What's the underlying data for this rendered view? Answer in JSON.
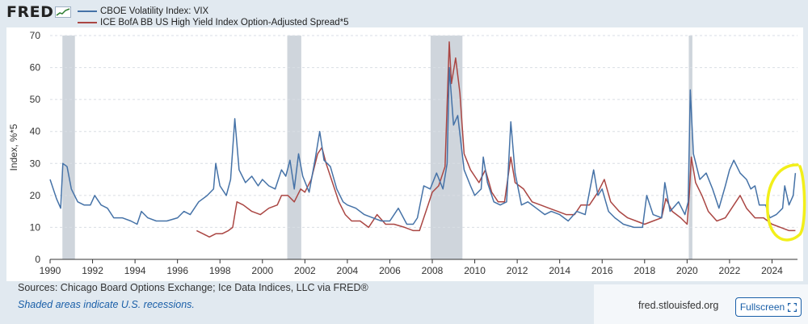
{
  "brand": {
    "logo_text": "FRED"
  },
  "footer": {
    "sources": "Sources: Chicago Board Options Exchange; Ice Data Indices, LLC via FRED®",
    "note": "Shaded areas indicate U.S. recessions.",
    "site": "fred.stlouisfed.org",
    "fullscreen_label": "Fullscreen"
  },
  "colors": {
    "vix": "#4572a7",
    "spread": "#aa4643",
    "recession": "#cfd5dc",
    "grid": "#d9dee4",
    "highlight": "#f2ef1a"
  },
  "chart_data": {
    "type": "line",
    "title": "",
    "xlabel": "",
    "ylabel": "Index, %*5",
    "xlim": [
      1990.0,
      2025.2
    ],
    "ylim": [
      0,
      70
    ],
    "y_ticks": [
      0,
      10,
      20,
      30,
      40,
      50,
      60,
      70
    ],
    "x_ticks": [
      "1990",
      "1992",
      "1994",
      "1996",
      "1998",
      "2000",
      "2002",
      "2004",
      "2006",
      "2008",
      "2010",
      "2012",
      "2014",
      "2016",
      "2018",
      "2020",
      "2022",
      "2024"
    ],
    "recessions": [
      [
        1990.58,
        1991.17
      ],
      [
        2001.17,
        2001.83
      ],
      [
        2007.92,
        2009.42
      ],
      [
        2020.08,
        2020.25
      ]
    ],
    "annotation": "yellow hand-drawn circle around the 2024 end of both series",
    "series": [
      {
        "name": "CBOE Volatility Index: VIX",
        "color": "#4572a7",
        "points": [
          [
            1990.0,
            25
          ],
          [
            1990.3,
            19
          ],
          [
            1990.5,
            16
          ],
          [
            1990.6,
            30
          ],
          [
            1990.8,
            29
          ],
          [
            1991.0,
            22
          ],
          [
            1991.3,
            18
          ],
          [
            1991.6,
            17
          ],
          [
            1991.9,
            17
          ],
          [
            1992.1,
            20
          ],
          [
            1992.4,
            17
          ],
          [
            1992.7,
            16
          ],
          [
            1993.0,
            13
          ],
          [
            1993.4,
            13
          ],
          [
            1993.8,
            12
          ],
          [
            1994.1,
            11
          ],
          [
            1994.3,
            15
          ],
          [
            1994.6,
            13
          ],
          [
            1995.0,
            12
          ],
          [
            1995.5,
            12
          ],
          [
            1996.0,
            13
          ],
          [
            1996.3,
            15
          ],
          [
            1996.6,
            14
          ],
          [
            1997.0,
            18
          ],
          [
            1997.4,
            20
          ],
          [
            1997.7,
            22
          ],
          [
            1997.8,
            30
          ],
          [
            1998.0,
            23
          ],
          [
            1998.3,
            20
          ],
          [
            1998.5,
            25
          ],
          [
            1998.7,
            44
          ],
          [
            1998.9,
            28
          ],
          [
            1999.2,
            24
          ],
          [
            1999.5,
            26
          ],
          [
            1999.8,
            23
          ],
          [
            2000.0,
            25
          ],
          [
            2000.3,
            23
          ],
          [
            2000.6,
            22
          ],
          [
            2000.9,
            28
          ],
          [
            2001.1,
            26
          ],
          [
            2001.3,
            31
          ],
          [
            2001.5,
            22
          ],
          [
            2001.7,
            33
          ],
          [
            2001.9,
            26
          ],
          [
            2002.2,
            21
          ],
          [
            2002.5,
            32
          ],
          [
            2002.7,
            40
          ],
          [
            2002.9,
            31
          ],
          [
            2003.2,
            29
          ],
          [
            2003.5,
            22
          ],
          [
            2003.8,
            18
          ],
          [
            2004.0,
            17
          ],
          [
            2004.4,
            16
          ],
          [
            2004.8,
            14
          ],
          [
            2005.2,
            13
          ],
          [
            2005.6,
            12
          ],
          [
            2006.0,
            12
          ],
          [
            2006.4,
            16
          ],
          [
            2006.8,
            11
          ],
          [
            2007.1,
            11
          ],
          [
            2007.3,
            13
          ],
          [
            2007.6,
            23
          ],
          [
            2007.9,
            22
          ],
          [
            2008.2,
            27
          ],
          [
            2008.5,
            22
          ],
          [
            2008.7,
            30
          ],
          [
            2008.8,
            60
          ],
          [
            2009.0,
            42
          ],
          [
            2009.2,
            45
          ],
          [
            2009.5,
            28
          ],
          [
            2009.8,
            23
          ],
          [
            2010.0,
            20
          ],
          [
            2010.3,
            22
          ],
          [
            2010.4,
            32
          ],
          [
            2010.6,
            24
          ],
          [
            2010.9,
            18
          ],
          [
            2011.2,
            17
          ],
          [
            2011.5,
            18
          ],
          [
            2011.7,
            43
          ],
          [
            2011.9,
            27
          ],
          [
            2012.2,
            17
          ],
          [
            2012.5,
            18
          ],
          [
            2012.9,
            16
          ],
          [
            2013.3,
            14
          ],
          [
            2013.6,
            15
          ],
          [
            2014.0,
            14
          ],
          [
            2014.4,
            12
          ],
          [
            2014.8,
            15
          ],
          [
            2015.2,
            14
          ],
          [
            2015.6,
            28
          ],
          [
            2015.8,
            20
          ],
          [
            2016.0,
            22
          ],
          [
            2016.3,
            15
          ],
          [
            2016.6,
            13
          ],
          [
            2017.0,
            11
          ],
          [
            2017.5,
            10
          ],
          [
            2017.9,
            10
          ],
          [
            2018.1,
            20
          ],
          [
            2018.4,
            14
          ],
          [
            2018.8,
            13
          ],
          [
            2018.95,
            24
          ],
          [
            2019.2,
            15
          ],
          [
            2019.6,
            18
          ],
          [
            2019.9,
            14
          ],
          [
            2020.05,
            18
          ],
          [
            2020.15,
            53
          ],
          [
            2020.3,
            33
          ],
          [
            2020.6,
            25
          ],
          [
            2020.9,
            27
          ],
          [
            2021.2,
            22
          ],
          [
            2021.5,
            16
          ],
          [
            2021.8,
            23
          ],
          [
            2022.0,
            28
          ],
          [
            2022.2,
            31
          ],
          [
            2022.5,
            27
          ],
          [
            2022.8,
            25
          ],
          [
            2023.0,
            22
          ],
          [
            2023.2,
            23
          ],
          [
            2023.4,
            17
          ],
          [
            2023.7,
            17
          ],
          [
            2023.9,
            13
          ],
          [
            2024.2,
            14
          ],
          [
            2024.5,
            16
          ],
          [
            2024.6,
            23
          ],
          [
            2024.8,
            17
          ],
          [
            2025.0,
            20
          ],
          [
            2025.1,
            27
          ]
        ]
      },
      {
        "name": "ICE BofA BB US High Yield Index Option-Adjusted Spread*5",
        "color": "#aa4643",
        "points": [
          [
            1996.9,
            9
          ],
          [
            1997.2,
            8
          ],
          [
            1997.5,
            7
          ],
          [
            1997.8,
            8
          ],
          [
            1998.1,
            8
          ],
          [
            1998.4,
            9
          ],
          [
            1998.6,
            10
          ],
          [
            1998.8,
            18
          ],
          [
            1999.1,
            17
          ],
          [
            1999.5,
            15
          ],
          [
            1999.9,
            14
          ],
          [
            2000.3,
            16
          ],
          [
            2000.7,
            17
          ],
          [
            2000.9,
            20
          ],
          [
            2001.2,
            20
          ],
          [
            2001.5,
            18
          ],
          [
            2001.8,
            22
          ],
          [
            2002.0,
            21
          ],
          [
            2002.3,
            25
          ],
          [
            2002.6,
            33
          ],
          [
            2002.8,
            35
          ],
          [
            2003.0,
            30
          ],
          [
            2003.3,
            24
          ],
          [
            2003.6,
            18
          ],
          [
            2003.9,
            14
          ],
          [
            2004.2,
            12
          ],
          [
            2004.6,
            12
          ],
          [
            2005.0,
            10
          ],
          [
            2005.4,
            14
          ],
          [
            2005.8,
            11
          ],
          [
            2006.2,
            11
          ],
          [
            2006.7,
            10
          ],
          [
            2007.1,
            9
          ],
          [
            2007.4,
            9
          ],
          [
            2007.8,
            17
          ],
          [
            2008.0,
            21
          ],
          [
            2008.3,
            23
          ],
          [
            2008.6,
            29
          ],
          [
            2008.8,
            68
          ],
          [
            2008.9,
            55
          ],
          [
            2009.1,
            63
          ],
          [
            2009.3,
            52
          ],
          [
            2009.5,
            33
          ],
          [
            2009.8,
            28
          ],
          [
            2010.2,
            24
          ],
          [
            2010.5,
            28
          ],
          [
            2010.8,
            21
          ],
          [
            2011.1,
            18
          ],
          [
            2011.4,
            18
          ],
          [
            2011.7,
            32
          ],
          [
            2011.9,
            24
          ],
          [
            2012.3,
            22
          ],
          [
            2012.7,
            18
          ],
          [
            2013.1,
            17
          ],
          [
            2013.5,
            16
          ],
          [
            2013.9,
            15
          ],
          [
            2014.3,
            14
          ],
          [
            2014.7,
            14
          ],
          [
            2015.0,
            17
          ],
          [
            2015.4,
            17
          ],
          [
            2015.8,
            21
          ],
          [
            2016.1,
            25
          ],
          [
            2016.4,
            18
          ],
          [
            2016.8,
            15
          ],
          [
            2017.2,
            13
          ],
          [
            2017.6,
            12
          ],
          [
            2018.0,
            11
          ],
          [
            2018.4,
            12
          ],
          [
            2018.8,
            13
          ],
          [
            2019.0,
            19
          ],
          [
            2019.3,
            15
          ],
          [
            2019.7,
            13
          ],
          [
            2020.0,
            11
          ],
          [
            2020.1,
            20
          ],
          [
            2020.2,
            32
          ],
          [
            2020.4,
            24
          ],
          [
            2020.7,
            20
          ],
          [
            2021.0,
            15
          ],
          [
            2021.4,
            12
          ],
          [
            2021.8,
            13
          ],
          [
            2022.2,
            17
          ],
          [
            2022.5,
            20
          ],
          [
            2022.8,
            16
          ],
          [
            2023.2,
            13
          ],
          [
            2023.6,
            13
          ],
          [
            2024.0,
            11
          ],
          [
            2024.4,
            10
          ],
          [
            2024.8,
            9
          ],
          [
            2025.1,
            9
          ]
        ]
      }
    ]
  }
}
